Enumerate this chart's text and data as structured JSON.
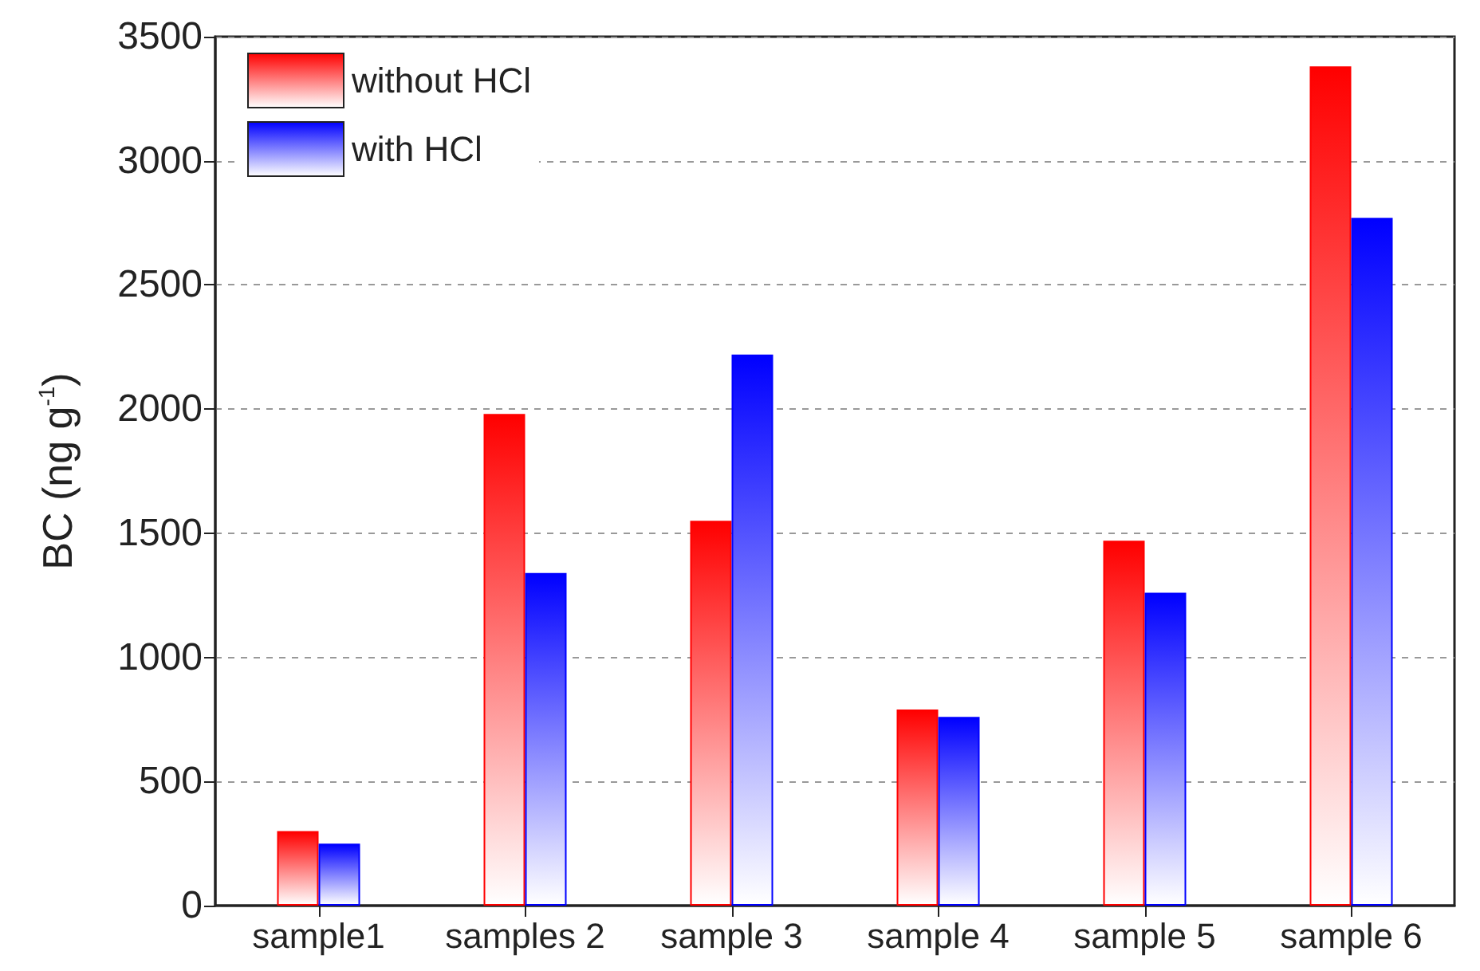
{
  "chart_data": {
    "type": "bar",
    "ylabel": "BC (ng g$^{-1}$)",
    "categories": [
      "sample1",
      "samples 2",
      "sample 3",
      "sample 4",
      "sample 5",
      "sample 6"
    ],
    "series": [
      {
        "name": "without HCl",
        "color": "#ff0000",
        "values": [
          300,
          1980,
          1550,
          790,
          1470,
          3380
        ]
      },
      {
        "name": "with HCl",
        "color": "#0000ff",
        "values": [
          250,
          1340,
          2220,
          760,
          1260,
          2770
        ]
      }
    ],
    "ylim": [
      0,
      3500
    ],
    "yticks": [
      0,
      500,
      1000,
      1500,
      2000,
      2500,
      3000,
      3500
    ],
    "grid": "y",
    "legend": "top left"
  }
}
